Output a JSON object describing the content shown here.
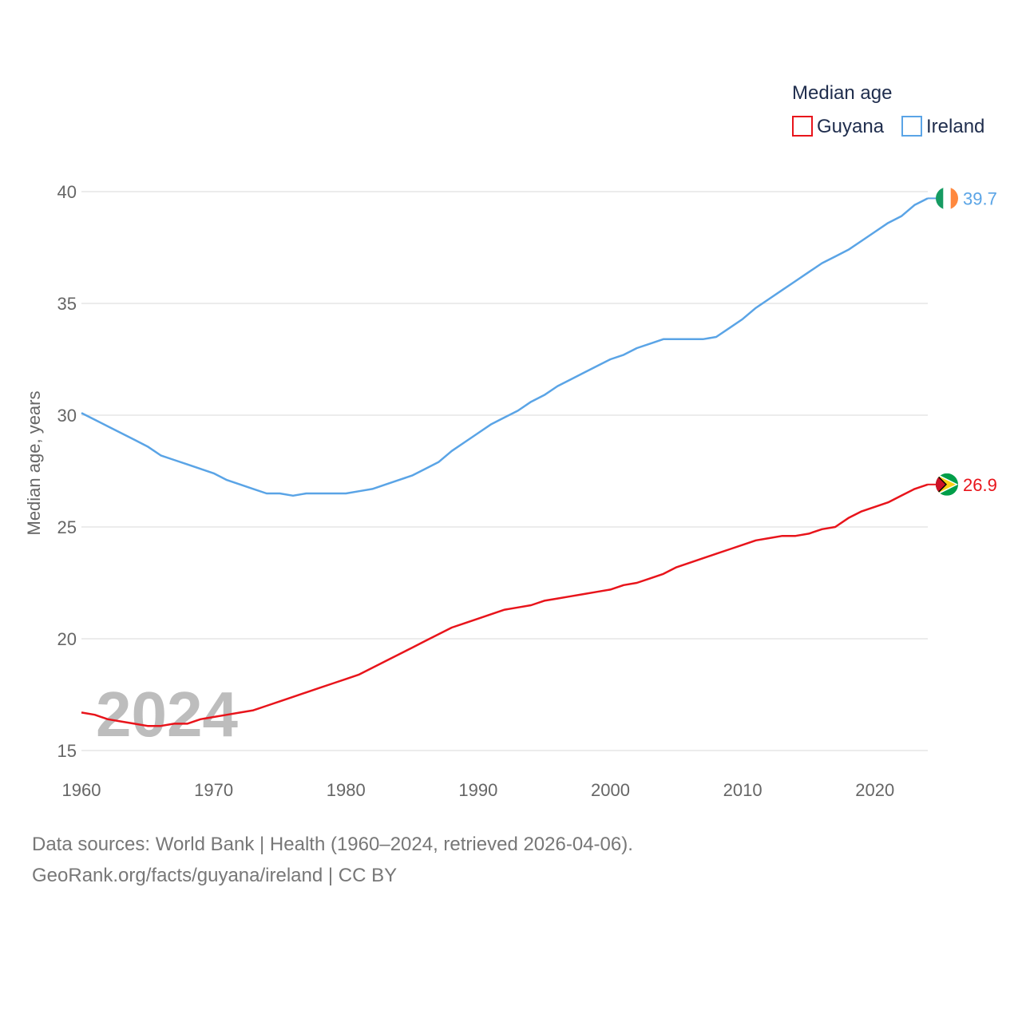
{
  "chart_data": {
    "type": "line",
    "legend_title": "Median age",
    "ylabel": "Median age, years",
    "xlabel": "",
    "ylim": [
      15,
      40
    ],
    "xlim": [
      1960,
      2024
    ],
    "y_ticks": [
      15,
      20,
      25,
      30,
      35,
      40
    ],
    "x_ticks": [
      1960,
      1970,
      1980,
      1990,
      2000,
      2010,
      2020
    ],
    "year_label": "2024",
    "series": [
      {
        "name": "Guyana",
        "color": "#e8141b",
        "end_label": "26.9",
        "flag_icon": "guyana-flag-icon",
        "x": [
          1960,
          1961,
          1962,
          1963,
          1964,
          1965,
          1966,
          1967,
          1968,
          1969,
          1970,
          1971,
          1972,
          1973,
          1974,
          1975,
          1976,
          1977,
          1978,
          1979,
          1980,
          1981,
          1982,
          1983,
          1984,
          1985,
          1986,
          1987,
          1988,
          1989,
          1990,
          1991,
          1992,
          1993,
          1994,
          1995,
          1996,
          1997,
          1998,
          1999,
          2000,
          2001,
          2002,
          2003,
          2004,
          2005,
          2006,
          2007,
          2008,
          2009,
          2010,
          2011,
          2012,
          2013,
          2014,
          2015,
          2016,
          2017,
          2018,
          2019,
          2020,
          2021,
          2022,
          2023,
          2024
        ],
        "values": [
          16.7,
          16.6,
          16.4,
          16.3,
          16.2,
          16.1,
          16.1,
          16.2,
          16.2,
          16.4,
          16.5,
          16.6,
          16.7,
          16.8,
          17.0,
          17.2,
          17.4,
          17.6,
          17.8,
          18.0,
          18.2,
          18.4,
          18.7,
          19.0,
          19.3,
          19.6,
          19.9,
          20.2,
          20.5,
          20.7,
          20.9,
          21.1,
          21.3,
          21.4,
          21.5,
          21.7,
          21.8,
          21.9,
          22.0,
          22.1,
          22.2,
          22.4,
          22.5,
          22.7,
          22.9,
          23.2,
          23.4,
          23.6,
          23.8,
          24.0,
          24.2,
          24.4,
          24.5,
          24.6,
          24.6,
          24.7,
          24.9,
          25.0,
          25.4,
          25.7,
          25.9,
          26.1,
          26.4,
          26.7,
          26.9
        ]
      },
      {
        "name": "Ireland",
        "color": "#5aa4e6",
        "end_label": "39.7",
        "flag_icon": "ireland-flag-icon",
        "x": [
          1960,
          1961,
          1962,
          1963,
          1964,
          1965,
          1966,
          1967,
          1968,
          1969,
          1970,
          1971,
          1972,
          1973,
          1974,
          1975,
          1976,
          1977,
          1978,
          1979,
          1980,
          1981,
          1982,
          1983,
          1984,
          1985,
          1986,
          1987,
          1988,
          1989,
          1990,
          1991,
          1992,
          1993,
          1994,
          1995,
          1996,
          1997,
          1998,
          1999,
          2000,
          2001,
          2002,
          2003,
          2004,
          2005,
          2006,
          2007,
          2008,
          2009,
          2010,
          2011,
          2012,
          2013,
          2014,
          2015,
          2016,
          2017,
          2018,
          2019,
          2020,
          2021,
          2022,
          2023,
          2024
        ],
        "values": [
          30.1,
          29.8,
          29.5,
          29.2,
          28.9,
          28.6,
          28.2,
          28.0,
          27.8,
          27.6,
          27.4,
          27.1,
          26.9,
          26.7,
          26.5,
          26.5,
          26.4,
          26.5,
          26.5,
          26.5,
          26.5,
          26.6,
          26.7,
          26.9,
          27.1,
          27.3,
          27.6,
          27.9,
          28.4,
          28.8,
          29.2,
          29.6,
          29.9,
          30.2,
          30.6,
          30.9,
          31.3,
          31.6,
          31.9,
          32.2,
          32.5,
          32.7,
          33.0,
          33.2,
          33.4,
          33.4,
          33.4,
          33.4,
          33.5,
          33.9,
          34.3,
          34.8,
          35.2,
          35.6,
          36.0,
          36.4,
          36.8,
          37.1,
          37.4,
          37.8,
          38.2,
          38.6,
          38.9,
          39.4,
          39.7
        ]
      }
    ]
  },
  "footer": {
    "source": "Data sources: World Bank | Health (1960–2024, retrieved 2026-04-06).",
    "credit": "GeoRank.org/facts/guyana/ireland | CC BY"
  }
}
